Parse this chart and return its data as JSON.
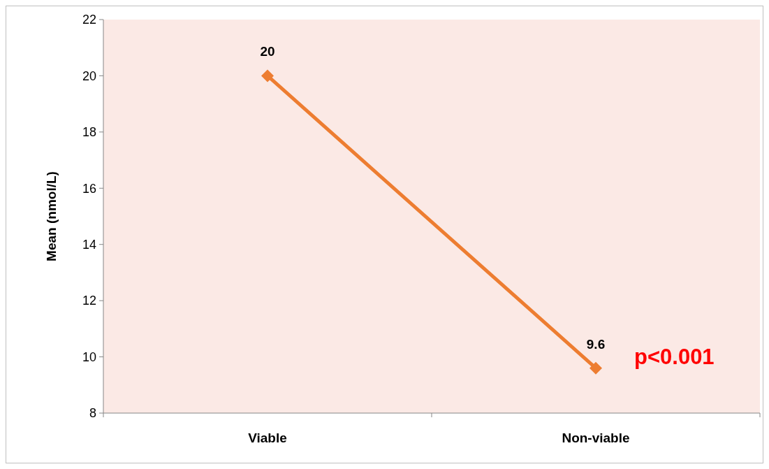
{
  "chart_data": {
    "type": "line",
    "ylabel": "Mean (nmol/L)",
    "categories": [
      "Viable",
      "Non-viable"
    ],
    "series": [
      {
        "color": "#ed7d31",
        "values": [
          20,
          9.6
        ]
      }
    ],
    "ylim": [
      8,
      22
    ],
    "yticks": [
      8,
      10,
      12,
      14,
      16,
      18,
      20,
      22
    ],
    "grid": false,
    "marker": "diamond",
    "line_style": "solid",
    "data_labels": true,
    "annotations": [
      "p<0.001"
    ]
  }
}
